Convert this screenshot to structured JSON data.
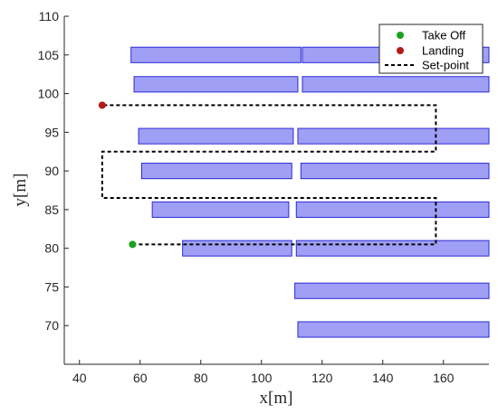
{
  "chart_data": {
    "type": "scatter",
    "title": "",
    "xlabel": "x[m]",
    "ylabel": "y[m]",
    "xlim": [
      35,
      175
    ],
    "ylim": [
      65,
      110
    ],
    "xticks": [
      40,
      60,
      80,
      100,
      120,
      140,
      160
    ],
    "yticks": [
      70,
      75,
      80,
      85,
      90,
      95,
      100,
      105,
      110
    ],
    "grid": false,
    "legend_position": "top-right",
    "obstacles": [
      {
        "x0": 57,
        "x1": 113,
        "y0": 104,
        "y1": 106
      },
      {
        "x0": 113.5,
        "x1": 175,
        "y0": 104,
        "y1": 106
      },
      {
        "x0": 58,
        "x1": 112,
        "y0": 100.2,
        "y1": 102.2
      },
      {
        "x0": 113.5,
        "x1": 175,
        "y0": 100.2,
        "y1": 102.2
      },
      {
        "x0": 59.5,
        "x1": 110.5,
        "y0": 93.5,
        "y1": 95.5
      },
      {
        "x0": 112,
        "x1": 175,
        "y0": 93.5,
        "y1": 95.5
      },
      {
        "x0": 60.5,
        "x1": 110,
        "y0": 89,
        "y1": 91
      },
      {
        "x0": 113,
        "x1": 175,
        "y0": 89,
        "y1": 91
      },
      {
        "x0": 64,
        "x1": 109,
        "y0": 84,
        "y1": 86
      },
      {
        "x0": 111.5,
        "x1": 175,
        "y0": 84,
        "y1": 86
      },
      {
        "x0": 74,
        "x1": 110,
        "y0": 79,
        "y1": 81
      },
      {
        "x0": 111.5,
        "x1": 175,
        "y0": 79,
        "y1": 81
      },
      {
        "x0": 111,
        "x1": 175,
        "y0": 73.5,
        "y1": 75.5
      },
      {
        "x0": 112,
        "x1": 175,
        "y0": 68.5,
        "y1": 70.5
      }
    ],
    "series": [
      {
        "name": "Take Off",
        "type": "scatter",
        "color": "#1aa31a",
        "x": [
          57.5
        ],
        "y": [
          80.5
        ]
      },
      {
        "name": "Landing",
        "type": "scatter",
        "color": "#b21a1a",
        "x": [
          47.5
        ],
        "y": [
          98.5
        ]
      },
      {
        "name": "Set-point",
        "type": "line",
        "style": "dashed",
        "color": "#000000",
        "x": [
          57.5,
          157.5,
          157.5,
          47.5,
          47.5,
          157.5,
          157.5,
          47.5
        ],
        "y": [
          80.5,
          80.5,
          86.5,
          86.5,
          92.5,
          92.5,
          98.5,
          98.5
        ]
      }
    ],
    "colors": {
      "obstacle_fill": "#9f9ff5",
      "obstacle_stroke": "#2b2bd6",
      "axis": "#262626"
    }
  }
}
